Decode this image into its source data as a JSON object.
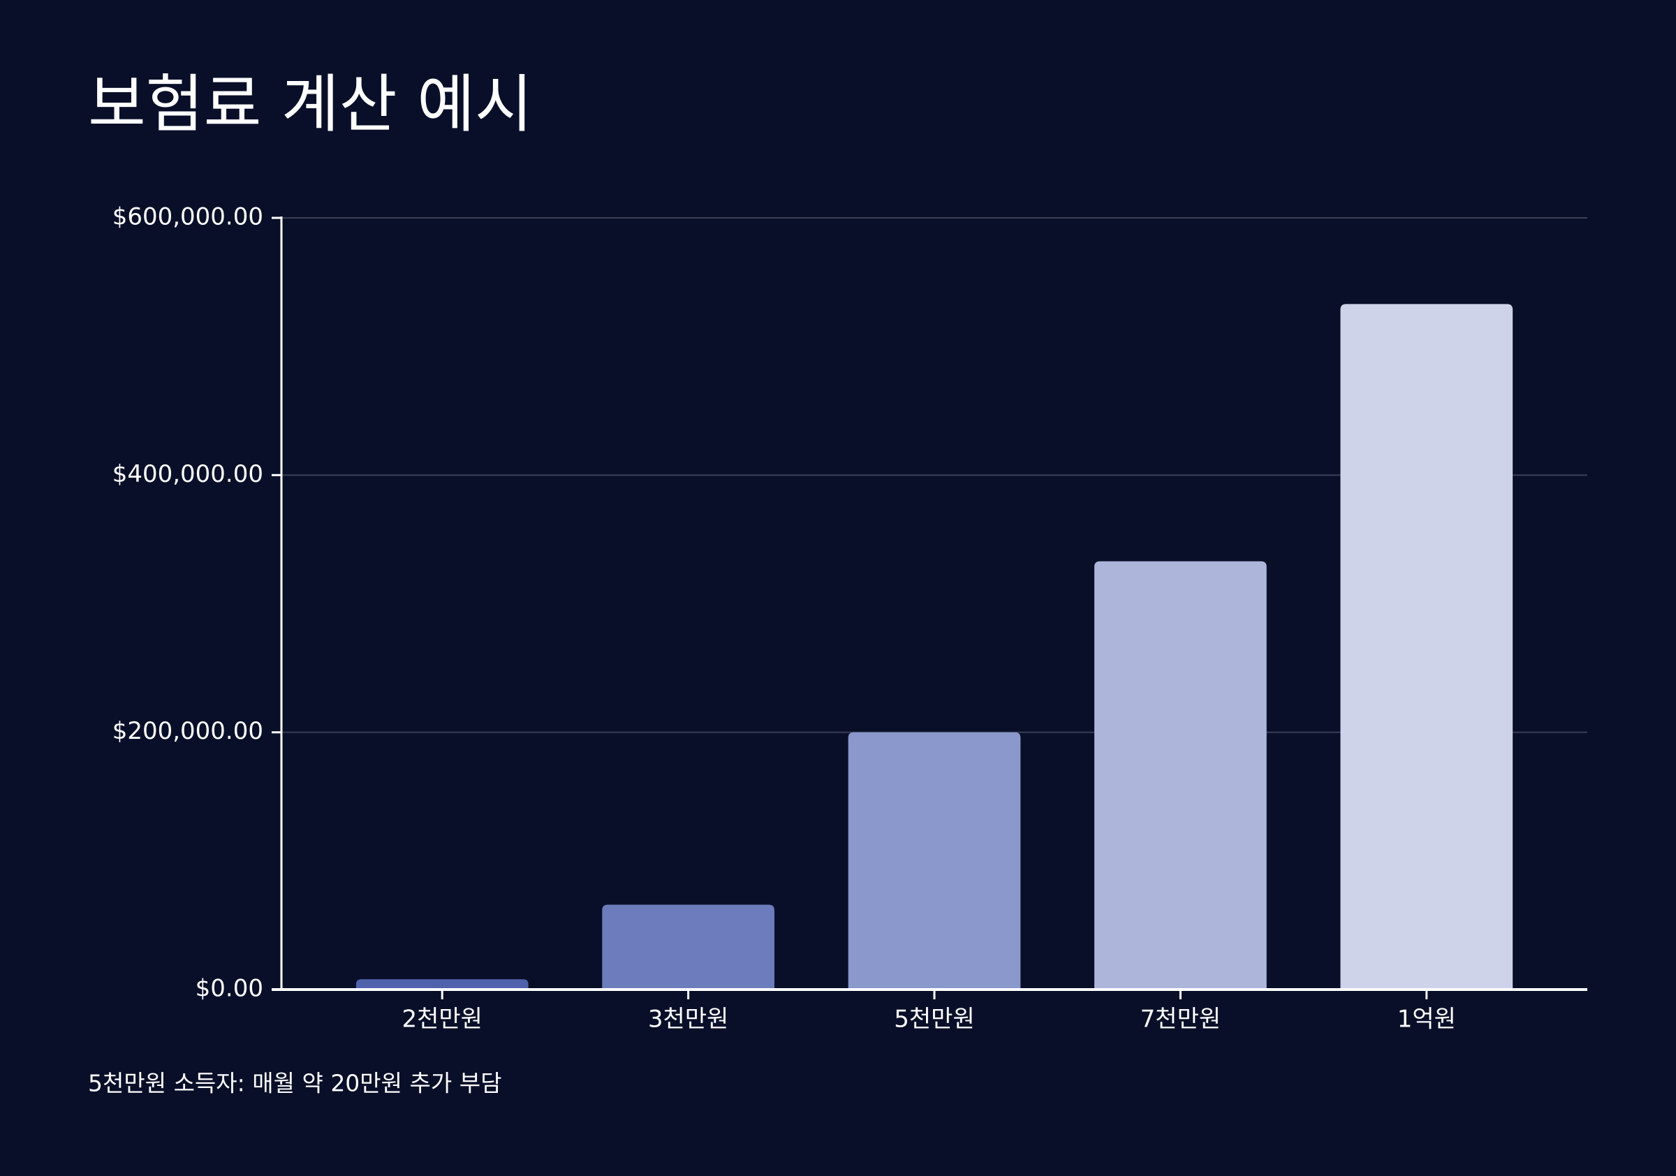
{
  "chart_data": {
    "type": "bar",
    "title": "보험료 계산 예시",
    "categories": [
      "2천만원",
      "3천만원",
      "5천만원",
      "7천만원",
      "1억원"
    ],
    "values": [
      8000,
      66000,
      200000,
      333000,
      533000
    ],
    "colors": [
      "#5162ad",
      "#6d7cbc",
      "#8b98cc",
      "#adb5db",
      "#cfd3ea"
    ],
    "ylim": [
      0,
      600000
    ],
    "yticks": [
      {
        "value": 0,
        "label": "$0.00"
      },
      {
        "value": 200000,
        "label": "$200,000.00"
      },
      {
        "value": 400000,
        "label": "$400,000.00"
      },
      {
        "value": 600000,
        "label": "$600,000.00"
      }
    ],
    "grid": true,
    "annotation": "5천만원 소득자: 매월 약 20만원 추가 부담"
  }
}
